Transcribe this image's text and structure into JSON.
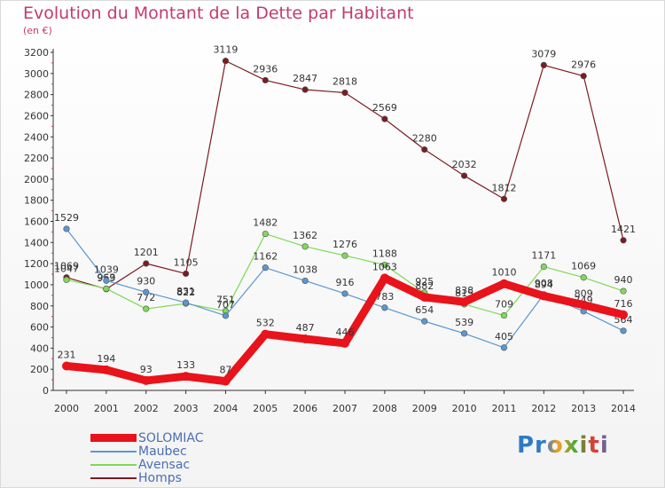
{
  "header": {
    "title": "Evolution du Montant de la Dette par Habitant",
    "unit": "(en €)"
  },
  "logo": {
    "text": "Proxiti"
  },
  "chart_data": {
    "type": "line",
    "title": "Evolution du Montant de la Dette par Habitant",
    "subtitle": "(en €)",
    "xlabel": "",
    "ylabel": "",
    "x": [
      "2000",
      "2001",
      "2002",
      "2003",
      "2004",
      "2005",
      "2006",
      "2007",
      "2008",
      "2009",
      "2010",
      "2011",
      "2012",
      "2013",
      "2014"
    ],
    "ylim": [
      0,
      3200
    ],
    "yticks": [
      "0",
      "200",
      "400",
      "600",
      "800",
      "1000",
      "1200",
      "1400",
      "1600",
      "1800",
      "2000",
      "2200",
      "2400",
      "2600",
      "2800",
      "3000",
      "3200"
    ],
    "grid": false,
    "legend": "bottom-left",
    "series": [
      {
        "name": "Homps",
        "color": "#7a1c23",
        "values": [
          1069,
          959,
          1201,
          1105,
          3119,
          2936,
          2847,
          2818,
          2569,
          2280,
          2032,
          1812,
          3079,
          2976,
          1421
        ]
      },
      {
        "name": "Avensac",
        "color": "#7ed957",
        "values": [
          1047,
          963,
          772,
          822,
          751,
          1482,
          1362,
          1276,
          1188,
          925,
          815,
          709,
          1171,
          1069,
          940
        ]
      },
      {
        "name": "Maubec",
        "color": "#5b97d0",
        "values": [
          1529,
          1039,
          930,
          831,
          707,
          1162,
          1038,
          916,
          783,
          654,
          539,
          405,
          908,
          749,
          564
        ]
      },
      {
        "name": "SOLOMIAC",
        "color": "#e8131b",
        "values": [
          231,
          194,
          93,
          133,
          87,
          532,
          487,
          446,
          1063,
          882,
          838,
          1010,
          894,
          809,
          716
        ]
      }
    ]
  }
}
